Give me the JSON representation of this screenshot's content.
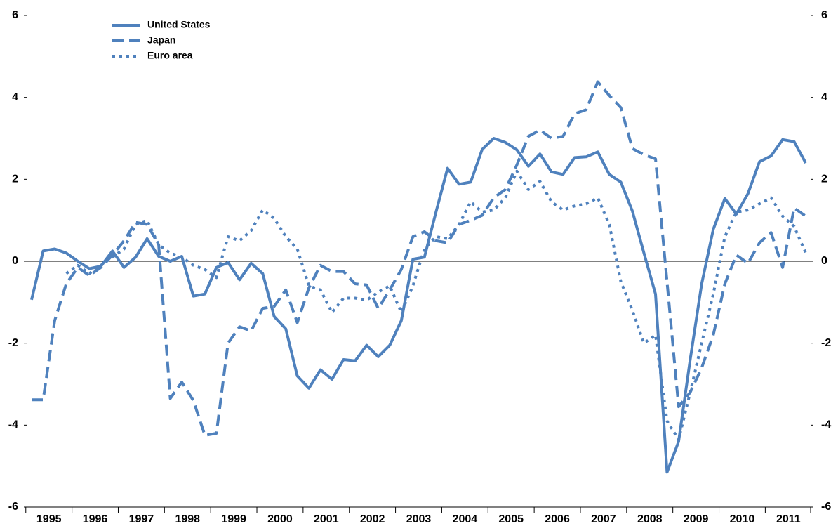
{
  "chart_data": {
    "type": "line",
    "categories": [
      "1995",
      null,
      null,
      null,
      "1996",
      null,
      null,
      null,
      "1997",
      null,
      null,
      null,
      "1998",
      null,
      null,
      null,
      "1999",
      null,
      null,
      null,
      "2000",
      null,
      null,
      null,
      "2001",
      null,
      null,
      null,
      "2002",
      null,
      null,
      null,
      "2003",
      null,
      null,
      null,
      "2004",
      null,
      null,
      null,
      "2005",
      null,
      null,
      null,
      "2006",
      null,
      null,
      null,
      "2007",
      null,
      null,
      null,
      "2008",
      null,
      null,
      null,
      "2009",
      null,
      null,
      null,
      "2010",
      null,
      null,
      null,
      "2011",
      null,
      null,
      null
    ],
    "series": [
      {
        "name": "United States",
        "color": "#4f81bd",
        "style": "solid",
        "values": [
          -0.94,
          0.25,
          0.3,
          0.2,
          0,
          -0.18,
          -0.12,
          0.25,
          -0.15,
          0.1,
          0.55,
          0.12,
          0,
          0.12,
          -0.85,
          -0.8,
          -0.15,
          -0.03,
          -0.45,
          -0.05,
          -0.3,
          -1.35,
          -1.65,
          -2.8,
          -3.1,
          -2.65,
          -2.88,
          -2.4,
          -2.43,
          -2.05,
          -2.33,
          -2.05,
          -1.45,
          0.05,
          0.1,
          1.2,
          2.27,
          1.88,
          1.93,
          2.73,
          3.0,
          2.9,
          2.72,
          2.32,
          2.62,
          2.18,
          2.12,
          2.53,
          2.55,
          2.67,
          2.12,
          1.93,
          1.22,
          0.2,
          -0.8,
          -5.15,
          -4.4,
          -2.4,
          -0.55,
          0.78,
          1.53,
          1.15,
          1.65,
          2.43,
          2.57,
          2.97,
          2.92,
          2.4
        ]
      },
      {
        "name": "Japan",
        "color": "#4f81bd",
        "style": "dashed",
        "values": [
          -3.38,
          -3.38,
          -1.45,
          -0.55,
          -0.15,
          -0.35,
          -0.15,
          0.15,
          0.5,
          0.95,
          0.9,
          0.4,
          -3.35,
          -2.95,
          -3.4,
          -4.25,
          -4.2,
          -2.0,
          -1.6,
          -1.7,
          -1.15,
          -1.1,
          -0.7,
          -1.5,
          -0.65,
          -0.1,
          -0.25,
          -0.25,
          -0.55,
          -0.58,
          -1.15,
          -0.7,
          -0.2,
          0.6,
          0.72,
          0.5,
          0.45,
          0.9,
          1.0,
          1.12,
          1.55,
          1.75,
          2.35,
          3.05,
          3.2,
          3.0,
          3.05,
          3.6,
          3.7,
          4.38,
          4.05,
          3.75,
          2.75,
          2.6,
          2.5,
          -0.5,
          -3.55,
          -3.2,
          -2.6,
          -1.8,
          -0.55,
          0.15,
          -0.05,
          0.45,
          0.7,
          -0.15,
          1.3,
          1.1
        ]
      },
      {
        "name": "Euro area",
        "color": "#4f81bd",
        "style": "dotted",
        "values": [
          null,
          null,
          null,
          -0.3,
          -0.1,
          -0.3,
          -0.1,
          0.1,
          0.3,
          0.9,
          1.0,
          0.4,
          0.2,
          0.1,
          -0.1,
          -0.2,
          -0.4,
          0.6,
          0.5,
          0.75,
          1.25,
          1.05,
          0.6,
          0.3,
          -0.6,
          -0.7,
          -1.25,
          -0.9,
          -0.9,
          -0.95,
          -0.75,
          -0.6,
          -1.25,
          -0.6,
          0.3,
          0.6,
          0.55,
          0.9,
          1.45,
          1.2,
          1.25,
          1.55,
          2.2,
          1.75,
          1.95,
          1.45,
          1.25,
          1.35,
          1.4,
          1.55,
          0.9,
          -0.5,
          -1.2,
          -2.0,
          -1.8,
          -3.9,
          -4.35,
          -3.2,
          -2.0,
          -0.8,
          0.6,
          1.2,
          1.25,
          1.4,
          1.55,
          1.1,
          0.85,
          0.2
        ]
      }
    ],
    "ylim": [
      -6,
      6
    ],
    "yticks": [
      -6,
      -4,
      -2,
      0,
      2,
      4,
      6
    ],
    "y2lim": [
      -6,
      6
    ],
    "y2ticks": [
      -6,
      -4,
      -2,
      0,
      2,
      4,
      6
    ],
    "grid": false,
    "legend": "top-left"
  }
}
